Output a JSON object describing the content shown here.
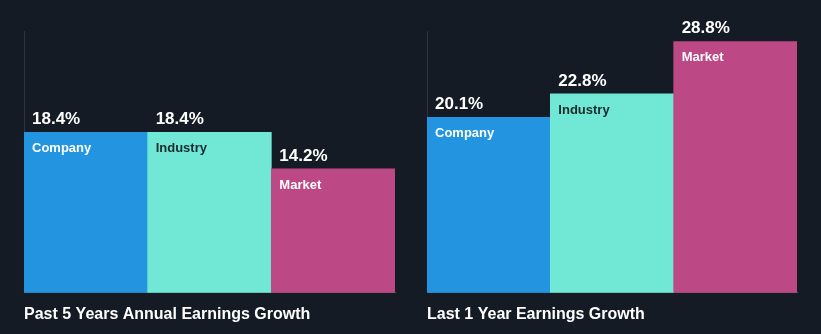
{
  "chart_data": [
    {
      "type": "bar",
      "title": "Past 5 Years Annual Earnings Growth",
      "categories": [
        "Company",
        "Industry",
        "Market"
      ],
      "values": [
        18.4,
        18.4,
        14.2
      ],
      "value_labels": [
        "18.4%",
        "18.4%",
        "14.2%"
      ],
      "colors": [
        "#2394df",
        "#71e7d6",
        "#bc4886"
      ],
      "ylim": [
        0,
        30
      ],
      "grid": false,
      "data_labels": true,
      "tick_labels": false
    },
    {
      "type": "bar",
      "title": "Last 1 Year Earnings Growth",
      "categories": [
        "Company",
        "Industry",
        "Market"
      ],
      "values": [
        20.1,
        22.8,
        28.8
      ],
      "value_labels": [
        "20.1%",
        "22.8%",
        "28.8%"
      ],
      "colors": [
        "#2394df",
        "#71e7d6",
        "#bc4886"
      ],
      "ylim": [
        0,
        30
      ],
      "grid": false,
      "data_labels": true,
      "tick_labels": false
    }
  ]
}
